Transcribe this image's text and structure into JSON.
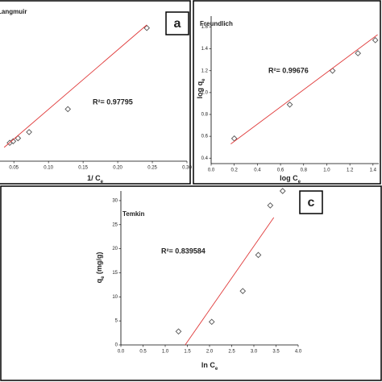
{
  "chart_data": [
    {
      "type": "scatter",
      "title": "Langmuir",
      "annotation": "R²= 0.97795",
      "panel_label": "a",
      "xlabel": "1/ C",
      "xlabel_sub": "e",
      "x": [
        0.044,
        0.049,
        0.056,
        0.072,
        0.128,
        0.242
      ],
      "values": [
        0.12,
        0.13,
        0.15,
        0.19,
        0.34,
        0.87
      ],
      "fit": {
        "x": [
          0.036,
          0.242
        ],
        "values": [
          0.09,
          0.89
        ]
      },
      "color": "#555555",
      "fit_color": "#e03a3a",
      "xlim": [
        0.03,
        0.3
      ],
      "ylim": [
        0,
        1
      ],
      "xticks": [
        {
          "value": 0.05,
          "label": "0.05"
        },
        {
          "value": 0.1,
          "label": "0.10"
        },
        {
          "value": 0.15,
          "label": "0.15"
        },
        {
          "value": 0.2,
          "label": "0.20"
        },
        {
          "value": 0.25,
          "label": "0.25"
        },
        {
          "value": 0.3,
          "label": "0.30"
        }
      ]
    },
    {
      "type": "scatter",
      "title": "Freundlich",
      "annotation": "R²= 0.99676",
      "xlabel": "log C",
      "xlabel_sub": "e",
      "ylabel": "log q",
      "ylabel_sub": "e",
      "x": [
        0.2,
        0.68,
        1.05,
        1.27,
        1.42
      ],
      "values": [
        0.58,
        0.89,
        1.2,
        1.36,
        1.48
      ],
      "fit": {
        "x": [
          0.17,
          1.44
        ],
        "values": [
          0.53,
          1.53
        ]
      },
      "color": "#555555",
      "fit_color": "#e03a3a",
      "xlim": [
        0,
        1.45
      ],
      "ylim": [
        0.35,
        1.7
      ],
      "xticks": [
        {
          "value": 0,
          "label": "0.0"
        },
        {
          "value": 0.2,
          "label": "0.2"
        },
        {
          "value": 0.4,
          "label": "0.4"
        },
        {
          "value": 0.6,
          "label": "0.6"
        },
        {
          "value": 0.8,
          "label": "0.8"
        },
        {
          "value": 1,
          "label": "1.0"
        },
        {
          "value": 1.2,
          "label": "1.2"
        },
        {
          "value": 1.4,
          "label": "1.4"
        }
      ],
      "yticks": [
        {
          "value": 0.4,
          "label": "0.4"
        },
        {
          "value": 0.6,
          "label": "0.6"
        },
        {
          "value": 0.8,
          "label": "0.8"
        },
        {
          "value": 1,
          "label": "1.0"
        },
        {
          "value": 1.2,
          "label": "1.2"
        },
        {
          "value": 1.4,
          "label": "1.4"
        },
        {
          "value": 1.6,
          "label": "1.6"
        }
      ]
    },
    {
      "type": "scatter",
      "title": "Temkin",
      "annotation": "R²= 0.839584",
      "panel_label": "c",
      "xlabel": "ln C",
      "xlabel_sub": "e",
      "ylabel": "q",
      "ylabel_sub": "e",
      "ylabel_after": " (mg/g)",
      "x": [
        1.3,
        2.05,
        2.75,
        3.1,
        3.37,
        3.65
      ],
      "values": [
        2.8,
        4.8,
        11.2,
        18.7,
        29,
        32
      ],
      "fit": {
        "x": [
          1.45,
          3.45
        ],
        "values": [
          0,
          26.5
        ]
      },
      "color": "#555555",
      "fit_color": "#e03a3a",
      "xlim": [
        0,
        4
      ],
      "ylim": [
        0,
        32
      ],
      "xticks": [
        {
          "value": 0,
          "label": "0.0"
        },
        {
          "value": 0.5,
          "label": "0.5"
        },
        {
          "value": 1,
          "label": "1.0"
        },
        {
          "value": 1.5,
          "label": "1.5"
        },
        {
          "value": 2,
          "label": "2.0"
        },
        {
          "value": 2.5,
          "label": "2.5"
        },
        {
          "value": 3,
          "label": "3.0"
        },
        {
          "value": 3.5,
          "label": "3.5"
        },
        {
          "value": 4,
          "label": "4.0"
        }
      ],
      "yticks": [
        0,
        5,
        10,
        15,
        20,
        25,
        30
      ]
    }
  ]
}
